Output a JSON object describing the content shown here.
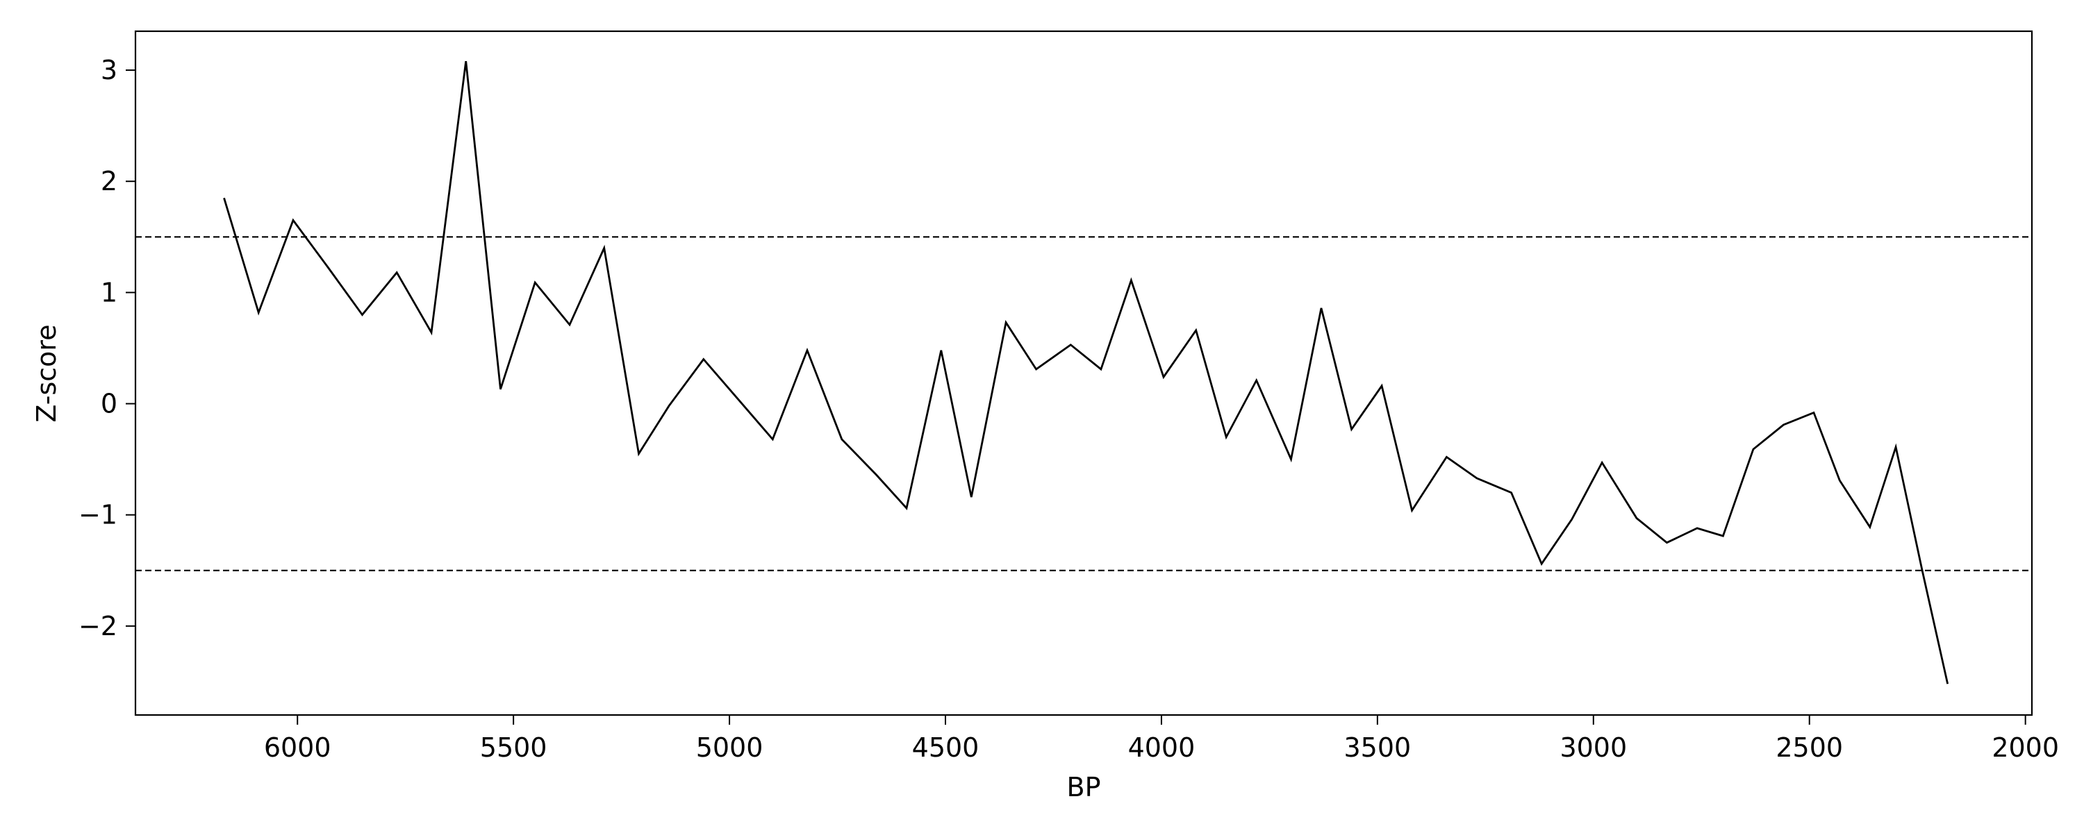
{
  "chart_data": {
    "type": "line",
    "title": "",
    "xlabel": "BP",
    "ylabel": "Z-score",
    "x_reversed": true,
    "xlim": [
      6375,
      1985
    ],
    "ylim": [
      -2.8,
      3.35
    ],
    "x_ticks": [
      6000,
      5500,
      5000,
      4500,
      4000,
      3500,
      3000,
      2500,
      2000
    ],
    "x_tick_labels": [
      "6000",
      "5500",
      "5000",
      "4500",
      "4000",
      "3500",
      "3000",
      "2500",
      "2000"
    ],
    "y_ticks": [
      -2,
      -1,
      0,
      1,
      2,
      3
    ],
    "y_tick_labels": [
      "−2",
      "−1",
      "0",
      "1",
      "2",
      "3"
    ],
    "grid": false,
    "line_color": "#000000",
    "reference_lines": [
      {
        "y": 1.5,
        "style": "dashed"
      },
      {
        "y": -1.5,
        "style": "dashed"
      }
    ],
    "series": [
      {
        "x": [
          6170,
          6090,
          6010,
          5930,
          5850,
          5770,
          5690,
          5610,
          5530,
          5450,
          5370,
          5290,
          5210,
          5140,
          5060,
          4980,
          4900,
          4820,
          4740,
          4660,
          4590,
          4510,
          4440,
          4360,
          4290,
          4210,
          4140,
          4070,
          3995,
          3920,
          3850,
          3780,
          3700,
          3630,
          3560,
          3490,
          3420,
          3340,
          3270,
          3190,
          3120,
          3050,
          2980,
          2900,
          2830,
          2760,
          2700,
          2630,
          2560,
          2490,
          2430,
          2360,
          2300,
          2240,
          2180
        ],
        "y": [
          1.85,
          0.82,
          1.65,
          1.23,
          0.8,
          1.18,
          0.64,
          3.08,
          0.13,
          1.09,
          0.71,
          1.4,
          -0.45,
          -0.02,
          0.4,
          0.04,
          -0.32,
          0.48,
          -0.32,
          -0.64,
          -0.94,
          0.48,
          -0.84,
          0.73,
          0.31,
          0.53,
          0.31,
          1.11,
          0.24,
          0.66,
          -0.3,
          0.21,
          -0.5,
          0.86,
          -0.23,
          0.16,
          -0.96,
          -0.48,
          -0.67,
          -0.8,
          -1.44,
          -1.04,
          -0.53,
          -1.03,
          -1.25,
          -1.12,
          -1.19,
          -0.41,
          -0.19,
          -0.08,
          -0.69,
          -1.11,
          -0.39,
          -1.48,
          -2.52
        ]
      }
    ]
  }
}
